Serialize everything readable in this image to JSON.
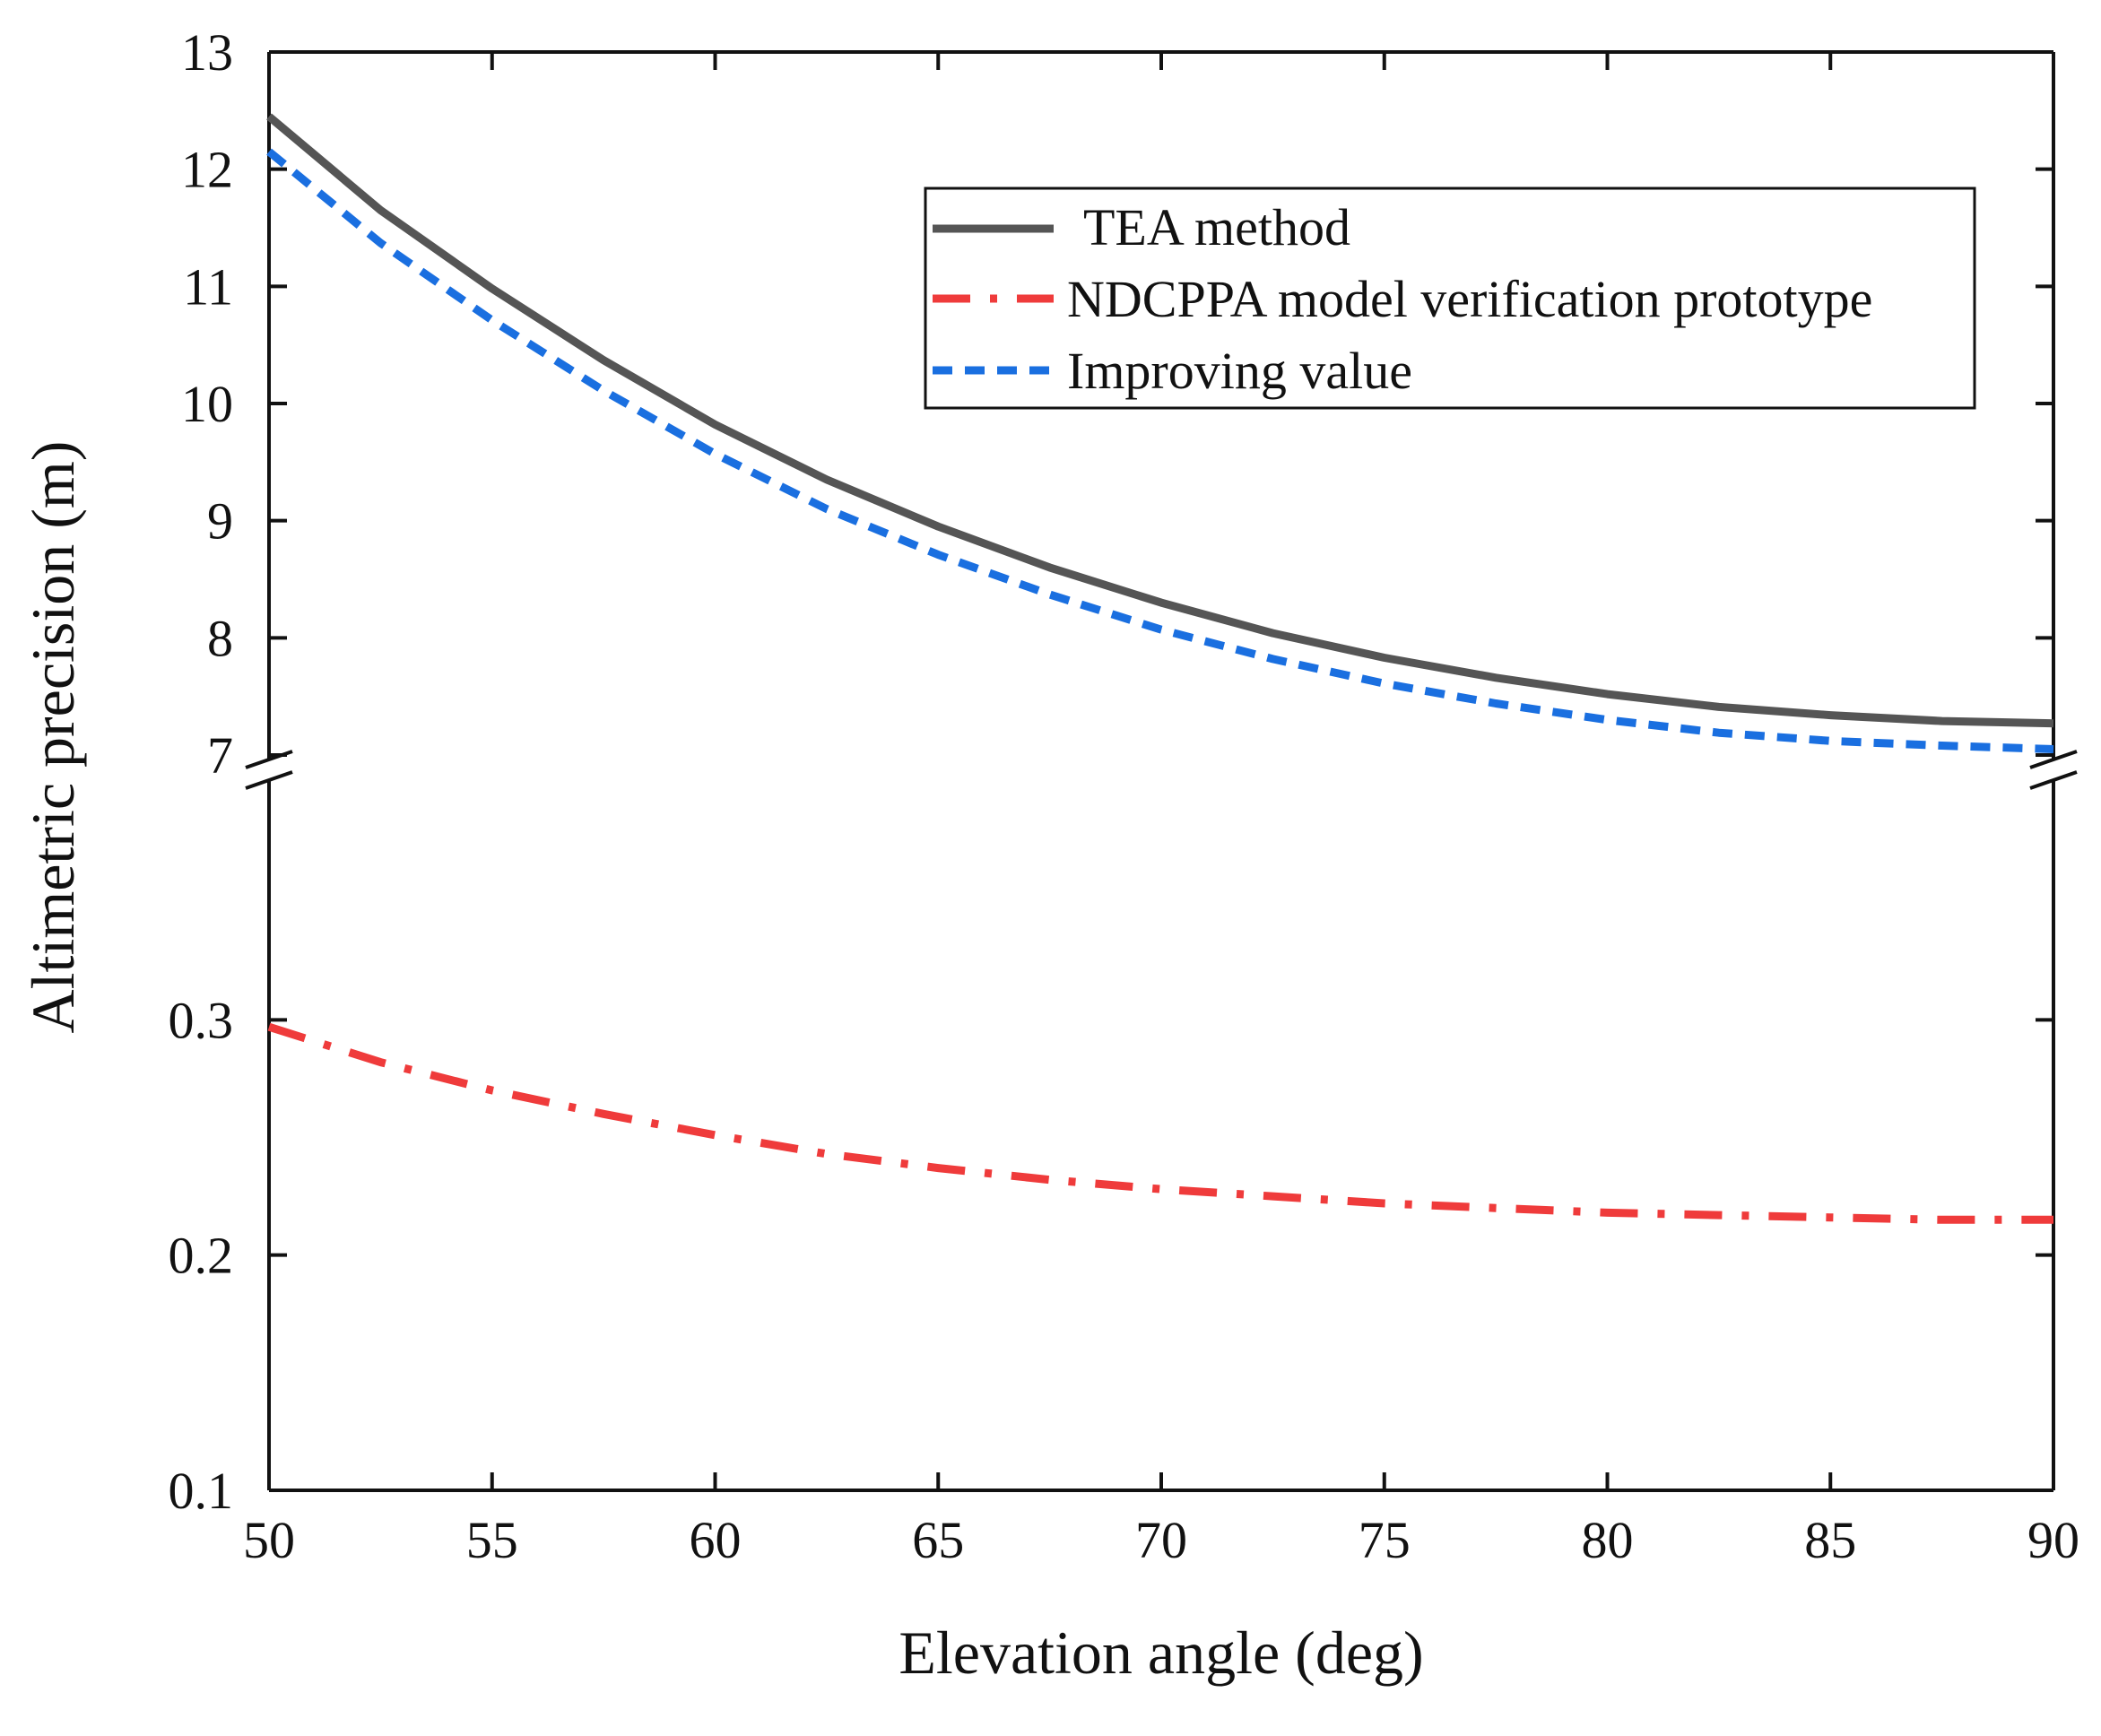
{
  "chart_data": {
    "type": "line",
    "title": "",
    "xlabel": "Elevation angle (deg)",
    "ylabel": "Altimetric precision (m)",
    "xlim": [
      50,
      90
    ],
    "x_ticks": [
      "50",
      "55",
      "60",
      "65",
      "70",
      "75",
      "80",
      "85",
      "90"
    ],
    "y_axis_break": true,
    "upper_ylim": [
      7,
      13
    ],
    "lower_ylim": [
      0.1,
      0.4
    ],
    "upper_y_ticks": [
      "7",
      "8",
      "9",
      "10",
      "11",
      "12",
      "13"
    ],
    "lower_y_ticks": [
      "0.1",
      "0.2",
      "0.3"
    ],
    "grid": false,
    "legend_position": "top-right",
    "x": [
      50,
      52.5,
      55,
      57.5,
      60,
      62.5,
      65,
      67.5,
      70,
      72.5,
      75,
      77.5,
      80,
      82.5,
      85,
      87.5,
      90
    ],
    "series": [
      {
        "name": "TEA method",
        "segment": "upper",
        "line_style": "solid",
        "color": "#555555",
        "values": [
          12.45,
          11.65,
          10.98,
          10.37,
          9.82,
          9.35,
          8.95,
          8.6,
          8.3,
          8.04,
          7.83,
          7.66,
          7.52,
          7.41,
          7.34,
          7.29,
          7.27
        ]
      },
      {
        "name": "NDCPPA model verification prototype",
        "segment": "lower",
        "line_style": "dash-dot",
        "color": "#ef3b3b",
        "values": [
          0.297,
          0.282,
          0.27,
          0.26,
          0.251,
          0.243,
          0.237,
          0.232,
          0.228,
          0.225,
          0.222,
          0.22,
          0.218,
          0.217,
          0.216,
          0.215,
          0.215
        ]
      },
      {
        "name": "Improving value",
        "segment": "upper",
        "line_style": "dotted",
        "color": "#1a6fe0",
        "values": [
          12.15,
          11.37,
          10.71,
          10.11,
          9.57,
          9.1,
          8.71,
          8.37,
          8.07,
          7.82,
          7.61,
          7.44,
          7.3,
          7.19,
          7.12,
          7.08,
          7.05
        ]
      }
    ]
  }
}
